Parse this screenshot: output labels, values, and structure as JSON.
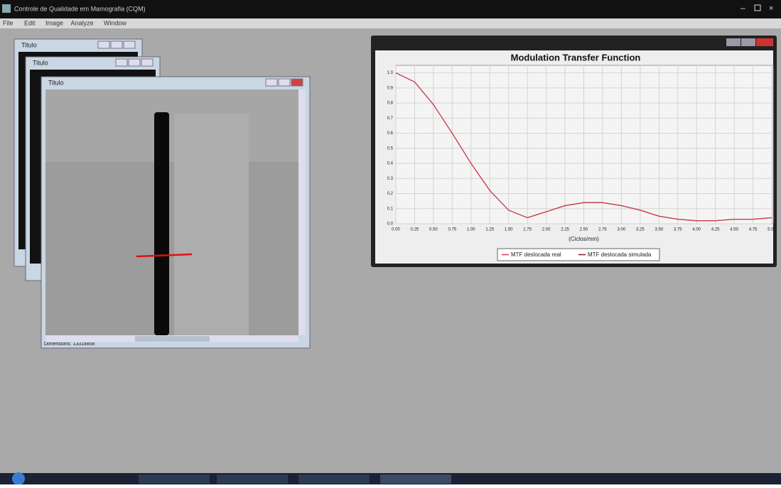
{
  "app_title": "Controle de Qualidade em Mamografia (CQM)",
  "menu": [
    "File",
    "Edit",
    "Image",
    "Analyze",
    "Window"
  ],
  "windows": [
    {
      "title": "Titulo"
    },
    {
      "title": "Titulo"
    },
    {
      "title": "Titulo",
      "status": "Dimensions: 1331x858"
    }
  ],
  "chart_data": {
    "type": "line",
    "title": "Modulation Transfer Function",
    "x_label": "(Ciclos/mm)",
    "x": [
      0,
      0.25,
      0.5,
      0.75,
      1.0,
      1.25,
      1.5,
      1.75,
      2.0,
      2.25,
      2.5,
      2.75,
      3.0,
      3.25,
      3.5,
      3.75,
      4.0,
      4.25,
      4.5,
      4.75,
      5.0
    ],
    "series": [
      {
        "name": "MTF deslocada real",
        "color": "#d0404f",
        "values": [
          1.0,
          0.94,
          0.79,
          0.6,
          0.4,
          0.22,
          0.09,
          0.04,
          0.08,
          0.12,
          0.14,
          0.14,
          0.12,
          0.09,
          0.05,
          0.03,
          0.02,
          0.02,
          0.03,
          0.03,
          0.04
        ]
      },
      {
        "name": "MTF deslocada simulada",
        "color": "#8b1a1a",
        "values": [
          1.0,
          0.94,
          0.79,
          0.6,
          0.4,
          0.22,
          0.09,
          0.04,
          0.08,
          0.12,
          0.14,
          0.14,
          0.12,
          0.09,
          0.05,
          0.03,
          0.02,
          0.02,
          0.03,
          0.03,
          0.04
        ]
      }
    ],
    "xlim": [
      0,
      5
    ],
    "ylim": [
      0,
      1.05
    ],
    "xticks": [
      {
        "value": 0,
        "label": "0.00"
      },
      {
        "value": 0.25,
        "label": "0.25"
      },
      {
        "value": 0.5,
        "label": "0.50"
      },
      {
        "value": 0.75,
        "label": "0.75"
      },
      {
        "value": 1,
        "label": "1.00"
      },
      {
        "value": 1.25,
        "label": "1.25"
      },
      {
        "value": 1.5,
        "label": "1.50"
      },
      {
        "value": 1.75,
        "label": "1.75"
      },
      {
        "value": 2,
        "label": "2.00"
      },
      {
        "value": 2.25,
        "label": "2.25"
      },
      {
        "value": 2.5,
        "label": "2.50"
      },
      {
        "value": 2.75,
        "label": "2.75"
      },
      {
        "value": 3,
        "label": "3.00"
      },
      {
        "value": 3.25,
        "label": "3.25"
      },
      {
        "value": 3.5,
        "label": "3.50"
      },
      {
        "value": 3.75,
        "label": "3.75"
      },
      {
        "value": 4,
        "label": "4.00"
      },
      {
        "value": 4.25,
        "label": "4.25"
      },
      {
        "value": 4.5,
        "label": "4.50"
      },
      {
        "value": 4.75,
        "label": "4.75"
      },
      {
        "value": 5,
        "label": "5.00"
      }
    ],
    "yticks": [
      {
        "value": 0,
        "label": "0.0"
      },
      0.1,
      0.2,
      0.3,
      0.4,
      0.5,
      0.6,
      0.7,
      0.8,
      0.9,
      {
        "value": 1,
        "label": "1.0"
      }
    ],
    "grid": true
  }
}
